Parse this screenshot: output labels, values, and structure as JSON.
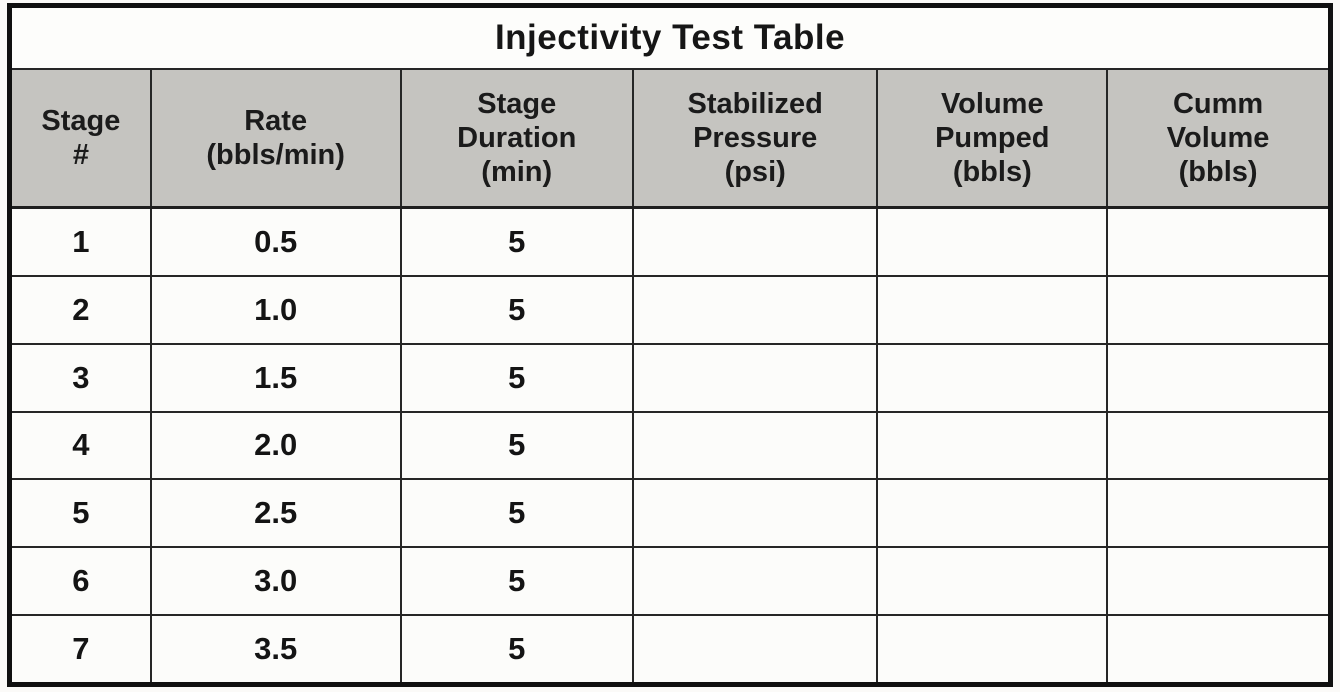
{
  "page": {
    "background": "#fbfaf8"
  },
  "table": {
    "title": "Injectivity Test Table",
    "colors": {
      "header_bg": "#c5c4c0",
      "border": "#262626",
      "outer_border": "#101010",
      "text": "#161616"
    },
    "columns": [
      {
        "key": "stage",
        "label": "Stage\n#"
      },
      {
        "key": "rate",
        "label": "Rate\n(bbls/min)"
      },
      {
        "key": "duration",
        "label": "Stage\nDuration\n(min)"
      },
      {
        "key": "pressure",
        "label": "Stabilized\nPressure\n(psi)"
      },
      {
        "key": "volume_pumped",
        "label": "Volume\nPumped\n(bbls)"
      },
      {
        "key": "cumm_volume",
        "label": "Cumm\nVolume\n(bbls)"
      }
    ],
    "rows": [
      {
        "stage": "1",
        "rate": "0.5",
        "duration": "5",
        "pressure": "",
        "volume_pumped": "",
        "cumm_volume": ""
      },
      {
        "stage": "2",
        "rate": "1.0",
        "duration": "5",
        "pressure": "",
        "volume_pumped": "",
        "cumm_volume": ""
      },
      {
        "stage": "3",
        "rate": "1.5",
        "duration": "5",
        "pressure": "",
        "volume_pumped": "",
        "cumm_volume": ""
      },
      {
        "stage": "4",
        "rate": "2.0",
        "duration": "5",
        "pressure": "",
        "volume_pumped": "",
        "cumm_volume": ""
      },
      {
        "stage": "5",
        "rate": "2.5",
        "duration": "5",
        "pressure": "",
        "volume_pumped": "",
        "cumm_volume": ""
      },
      {
        "stage": "6",
        "rate": "3.0",
        "duration": "5",
        "pressure": "",
        "volume_pumped": "",
        "cumm_volume": ""
      },
      {
        "stage": "7",
        "rate": "3.5",
        "duration": "5",
        "pressure": "",
        "volume_pumped": "",
        "cumm_volume": ""
      }
    ]
  }
}
